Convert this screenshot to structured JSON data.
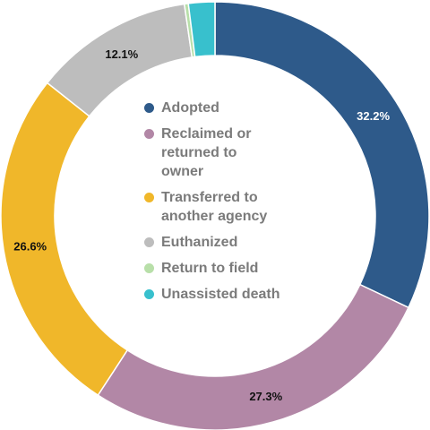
{
  "chart_data": {
    "type": "pie",
    "variant": "donut",
    "categories": [
      "Adopted",
      "Reclaimed or\nreturned to\nowner",
      "Transferred to\nanother agency",
      "Euthanized",
      "Return to field",
      "Unassisted death"
    ],
    "values": [
      32.2,
      27.3,
      26.6,
      12.1,
      0.3,
      2.0
    ],
    "data_labels": [
      "32.2%",
      "27.3%",
      "26.6%",
      "12.1%",
      "",
      ""
    ],
    "colors": [
      "#2e5a8a",
      "#b287a6",
      "#f0b72a",
      "#bdbdbd",
      "#b8dfa9",
      "#38c0cd"
    ],
    "legend_position": "center",
    "start_angle_deg": 0,
    "direction": "clockwise"
  }
}
